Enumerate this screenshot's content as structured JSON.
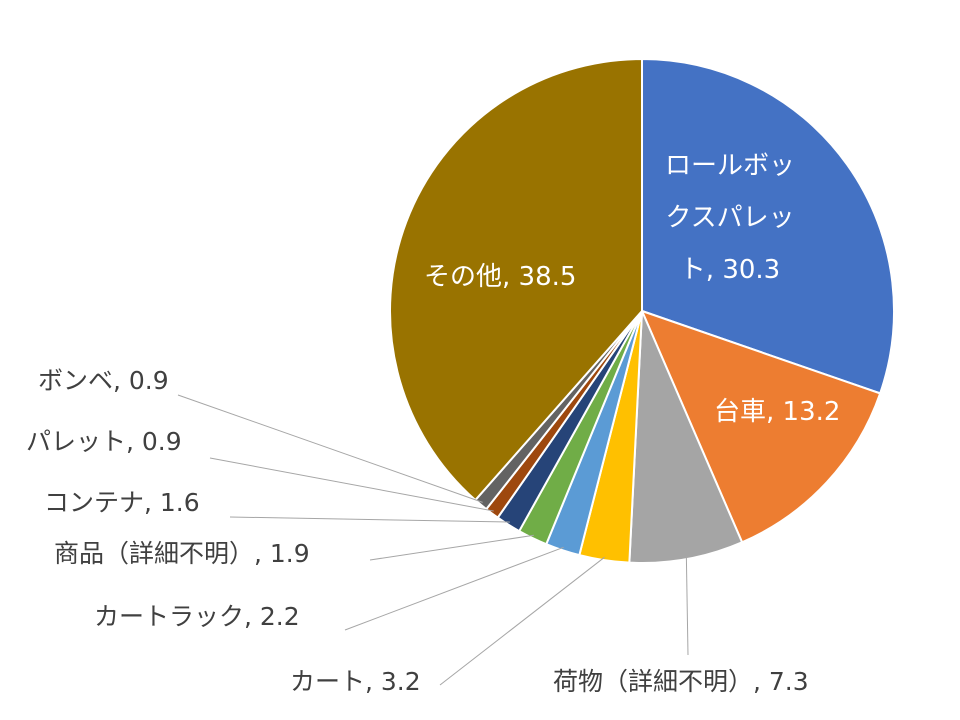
{
  "chart_data": {
    "type": "pie",
    "title": "",
    "start": "top-clockwise",
    "slices": [
      {
        "label": "ロールボックスパレット",
        "value": 30.3,
        "color": "#4472C4"
      },
      {
        "label": "台車",
        "value": 13.2,
        "color": "#ED7D31"
      },
      {
        "label": "荷物（詳細不明）",
        "value": 7.3,
        "color": "#A5A5A5"
      },
      {
        "label": "カート",
        "value": 3.2,
        "color": "#FFC000"
      },
      {
        "label": "カートラック",
        "value": 2.2,
        "color": "#5B9BD5"
      },
      {
        "label": "商品（詳細不明）",
        "value": 1.9,
        "color": "#70AD47"
      },
      {
        "label": "コンテナ",
        "value": 1.6,
        "color": "#264478"
      },
      {
        "label": "パレット",
        "value": 0.9,
        "color": "#9E480E"
      },
      {
        "label": "ボンベ",
        "value": 0.9,
        "color": "#636363"
      },
      {
        "label": "その他",
        "value": 38.5,
        "color": "#997300"
      }
    ],
    "data_labels": [
      "ロールボックス\nパレット\nト, 30.3",
      "台車, 13.2",
      "荷物（詳細不明）, 7.3",
      "カート, 3.2",
      "カートラック, 2.2",
      "商品（詳細不明）, 1.9",
      "コンテナ, 1.6",
      "パレット, 0.9",
      "ボンベ, 0.9",
      "その他, 38.5"
    ],
    "label_lines": {
      "l0a": "ロールボッ",
      "l0b": "クスパレッ",
      "l0c": "ト, 30.3"
    }
  }
}
